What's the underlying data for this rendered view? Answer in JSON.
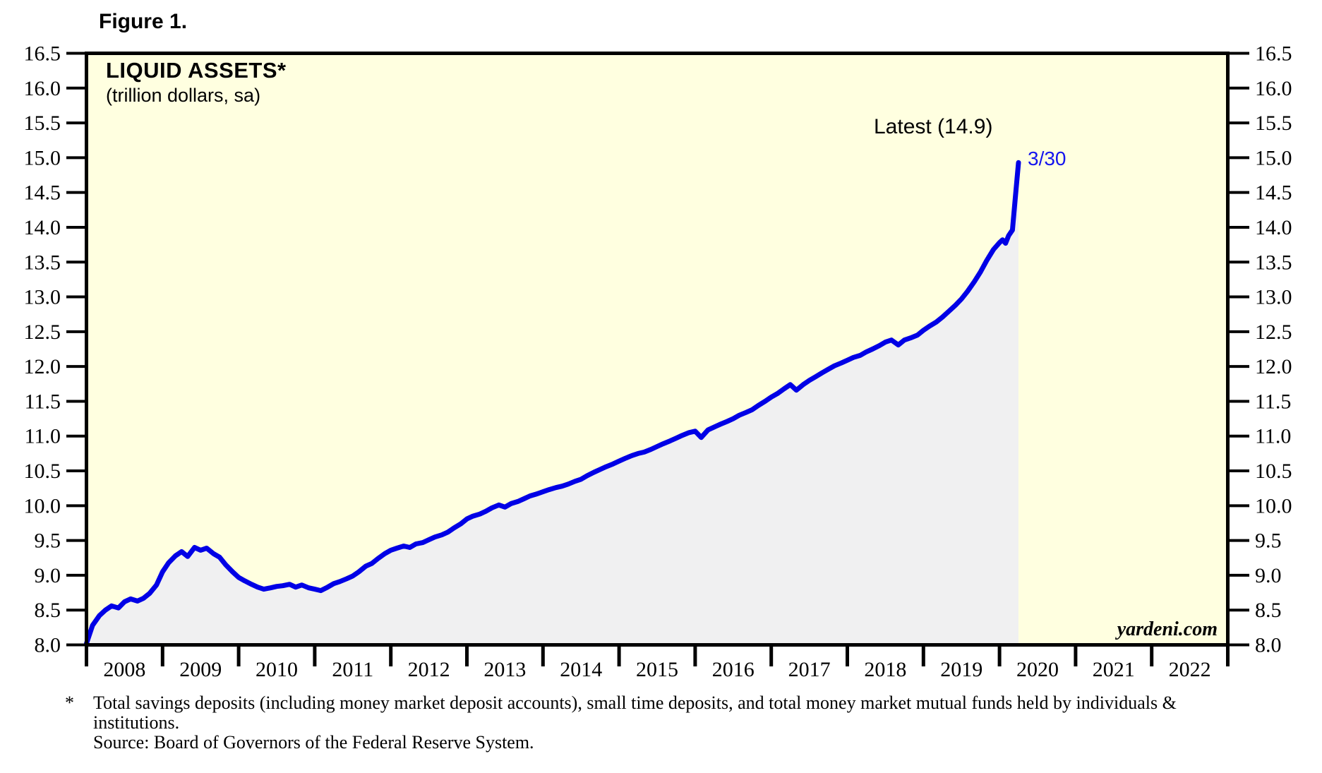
{
  "figure_label": "Figure 1.",
  "chart": {
    "title": "LIQUID ASSETS*",
    "subtitle": "(trillion dollars, sa)",
    "annotation_latest": "Latest (14.9)",
    "annotation_date": "3/30",
    "watermark": "yardeni.com"
  },
  "footnote": {
    "marker": "*",
    "line1": "Total savings deposits (including money market deposit accounts), small time deposits, and total money market mutual funds held by individuals &",
    "line2": "institutions.",
    "line3": "Source: Board of Governors of the Federal Reserve System."
  },
  "colors": {
    "line": "#0000E6",
    "fill": "#F0F0F1",
    "plot_background": "#FFFFE0",
    "annotation_blue": "#1414EE",
    "axis": "#000000"
  },
  "chart_data": {
    "type": "area",
    "title": "LIQUID ASSETS* (trillion dollars, sa)",
    "ylabel": "trillion dollars, sa",
    "ylim": [
      8.0,
      16.5
    ],
    "yticks": [
      8.0,
      8.5,
      9.0,
      9.5,
      10.0,
      10.5,
      11.0,
      11.5,
      12.0,
      12.5,
      13.0,
      13.5,
      14.0,
      14.5,
      15.0,
      15.5,
      16.0,
      16.5
    ],
    "xlim": [
      2008,
      2023
    ],
    "xtick_years": [
      2008,
      2009,
      2010,
      2011,
      2012,
      2013,
      2014,
      2015,
      2016,
      2017,
      2018,
      2019,
      2020,
      2021,
      2022
    ],
    "grid": false,
    "legend": "none",
    "latest_value": 14.9,
    "latest_date": "3/30",
    "series": [
      {
        "name": "Liquid Assets",
        "points": [
          [
            2008.0,
            8.02
          ],
          [
            2008.08,
            8.28
          ],
          [
            2008.17,
            8.42
          ],
          [
            2008.25,
            8.5
          ],
          [
            2008.33,
            8.56
          ],
          [
            2008.42,
            8.53
          ],
          [
            2008.5,
            8.62
          ],
          [
            2008.58,
            8.66
          ],
          [
            2008.67,
            8.63
          ],
          [
            2008.75,
            8.67
          ],
          [
            2008.83,
            8.74
          ],
          [
            2008.92,
            8.86
          ],
          [
            2009.0,
            9.05
          ],
          [
            2009.08,
            9.18
          ],
          [
            2009.17,
            9.28
          ],
          [
            2009.25,
            9.34
          ],
          [
            2009.33,
            9.27
          ],
          [
            2009.42,
            9.4
          ],
          [
            2009.5,
            9.36
          ],
          [
            2009.58,
            9.39
          ],
          [
            2009.67,
            9.31
          ],
          [
            2009.75,
            9.26
          ],
          [
            2009.83,
            9.15
          ],
          [
            2009.92,
            9.05
          ],
          [
            2010.0,
            8.97
          ],
          [
            2010.08,
            8.92
          ],
          [
            2010.17,
            8.87
          ],
          [
            2010.25,
            8.83
          ],
          [
            2010.33,
            8.8
          ],
          [
            2010.42,
            8.82
          ],
          [
            2010.5,
            8.84
          ],
          [
            2010.58,
            8.85
          ],
          [
            2010.67,
            8.87
          ],
          [
            2010.75,
            8.83
          ],
          [
            2010.83,
            8.86
          ],
          [
            2010.92,
            8.82
          ],
          [
            2011.0,
            8.8
          ],
          [
            2011.08,
            8.78
          ],
          [
            2011.17,
            8.83
          ],
          [
            2011.25,
            8.88
          ],
          [
            2011.33,
            8.91
          ],
          [
            2011.42,
            8.95
          ],
          [
            2011.5,
            8.99
          ],
          [
            2011.58,
            9.05
          ],
          [
            2011.67,
            9.13
          ],
          [
            2011.75,
            9.17
          ],
          [
            2011.83,
            9.24
          ],
          [
            2011.92,
            9.31
          ],
          [
            2012.0,
            9.36
          ],
          [
            2012.08,
            9.39
          ],
          [
            2012.17,
            9.42
          ],
          [
            2012.25,
            9.4
          ],
          [
            2012.33,
            9.45
          ],
          [
            2012.42,
            9.47
          ],
          [
            2012.5,
            9.51
          ],
          [
            2012.58,
            9.55
          ],
          [
            2012.67,
            9.58
          ],
          [
            2012.75,
            9.62
          ],
          [
            2012.83,
            9.68
          ],
          [
            2012.92,
            9.74
          ],
          [
            2013.0,
            9.81
          ],
          [
            2013.08,
            9.85
          ],
          [
            2013.17,
            9.88
          ],
          [
            2013.25,
            9.92
          ],
          [
            2013.33,
            9.97
          ],
          [
            2013.42,
            10.01
          ],
          [
            2013.5,
            9.98
          ],
          [
            2013.58,
            10.03
          ],
          [
            2013.67,
            10.06
          ],
          [
            2013.75,
            10.1
          ],
          [
            2013.83,
            10.14
          ],
          [
            2013.92,
            10.17
          ],
          [
            2014.0,
            10.2
          ],
          [
            2014.08,
            10.23
          ],
          [
            2014.17,
            10.26
          ],
          [
            2014.25,
            10.28
          ],
          [
            2014.33,
            10.31
          ],
          [
            2014.42,
            10.35
          ],
          [
            2014.5,
            10.38
          ],
          [
            2014.58,
            10.43
          ],
          [
            2014.67,
            10.48
          ],
          [
            2014.75,
            10.52
          ],
          [
            2014.83,
            10.56
          ],
          [
            2014.92,
            10.6
          ],
          [
            2015.0,
            10.64
          ],
          [
            2015.08,
            10.68
          ],
          [
            2015.17,
            10.72
          ],
          [
            2015.25,
            10.75
          ],
          [
            2015.33,
            10.77
          ],
          [
            2015.42,
            10.81
          ],
          [
            2015.5,
            10.85
          ],
          [
            2015.58,
            10.89
          ],
          [
            2015.67,
            10.93
          ],
          [
            2015.75,
            10.97
          ],
          [
            2015.83,
            11.01
          ],
          [
            2015.92,
            11.05
          ],
          [
            2016.0,
            11.07
          ],
          [
            2016.08,
            10.98
          ],
          [
            2016.17,
            11.09
          ],
          [
            2016.25,
            11.13
          ],
          [
            2016.33,
            11.17
          ],
          [
            2016.42,
            11.21
          ],
          [
            2016.5,
            11.25
          ],
          [
            2016.58,
            11.3
          ],
          [
            2016.67,
            11.34
          ],
          [
            2016.75,
            11.38
          ],
          [
            2016.83,
            11.44
          ],
          [
            2016.92,
            11.5
          ],
          [
            2017.0,
            11.56
          ],
          [
            2017.08,
            11.61
          ],
          [
            2017.17,
            11.68
          ],
          [
            2017.25,
            11.74
          ],
          [
            2017.33,
            11.66
          ],
          [
            2017.42,
            11.74
          ],
          [
            2017.5,
            11.8
          ],
          [
            2017.58,
            11.85
          ],
          [
            2017.67,
            11.91
          ],
          [
            2017.75,
            11.96
          ],
          [
            2017.83,
            12.01
          ],
          [
            2017.92,
            12.05
          ],
          [
            2018.0,
            12.09
          ],
          [
            2018.08,
            12.13
          ],
          [
            2018.17,
            12.16
          ],
          [
            2018.25,
            12.21
          ],
          [
            2018.33,
            12.25
          ],
          [
            2018.42,
            12.3
          ],
          [
            2018.5,
            12.35
          ],
          [
            2018.58,
            12.38
          ],
          [
            2018.67,
            12.31
          ],
          [
            2018.75,
            12.38
          ],
          [
            2018.83,
            12.41
          ],
          [
            2018.92,
            12.45
          ],
          [
            2019.0,
            12.52
          ],
          [
            2019.08,
            12.58
          ],
          [
            2019.17,
            12.64
          ],
          [
            2019.25,
            12.71
          ],
          [
            2019.33,
            12.79
          ],
          [
            2019.42,
            12.88
          ],
          [
            2019.5,
            12.97
          ],
          [
            2019.58,
            13.08
          ],
          [
            2019.67,
            13.22
          ],
          [
            2019.75,
            13.36
          ],
          [
            2019.83,
            13.52
          ],
          [
            2019.92,
            13.68
          ],
          [
            2020.0,
            13.78
          ],
          [
            2020.04,
            13.82
          ],
          [
            2020.08,
            13.77
          ],
          [
            2020.12,
            13.88
          ],
          [
            2020.17,
            13.96
          ],
          [
            2020.21,
            14.45
          ],
          [
            2020.25,
            14.93
          ]
        ]
      }
    ]
  }
}
